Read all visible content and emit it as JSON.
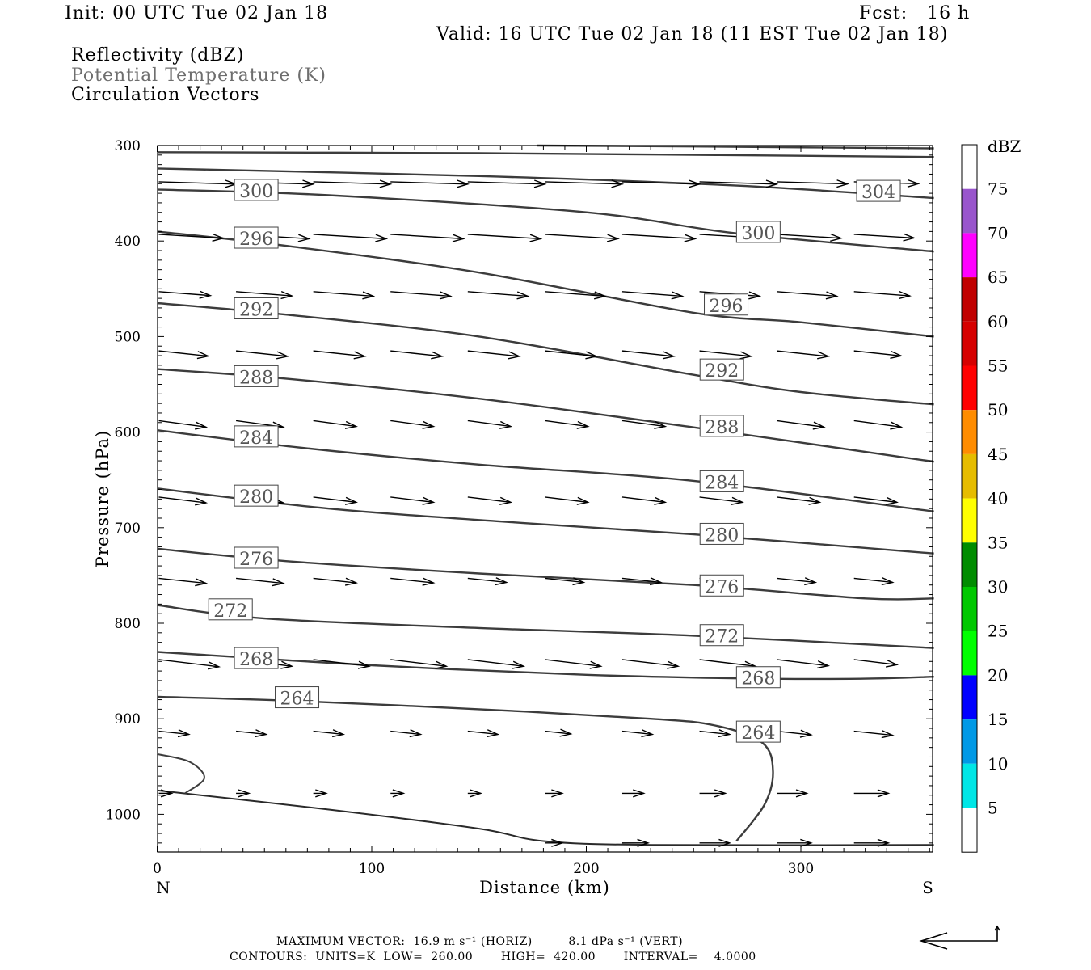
{
  "header": {
    "init": "Init: 00 UTC Tue 02 Jan 18",
    "fcst": "Fcst:   16 h",
    "valid": "Valid: 16 UTC Tue 02 Jan 18 (11 EST Tue 02 Jan 18)"
  },
  "fields": {
    "reflectivity": "Reflectivity (dBZ)",
    "theta": "Potential Temperature (K)",
    "vectors": "Circulation Vectors"
  },
  "footer": {
    "max_vector": "MAXIMUM VECTOR:  16.9 m s⁻¹ (HORIZ)         8.1 dPa s⁻¹ (VERT)",
    "contours": "CONTOURS:  UNITS=K  LOW=  260.00       HIGH=  420.00       INTERVAL=    4.0000"
  },
  "chart_data": {
    "type": "cross-section",
    "xlabel": "Distance (km)",
    "ylabel": "Pressure (hPa)",
    "xlim": [
      0,
      362
    ],
    "ylim": [
      300,
      1040
    ],
    "x_ticks": [
      "0",
      "100",
      "200",
      "300"
    ],
    "x_tick_values": [
      0,
      100,
      200,
      300
    ],
    "y_ticks": [
      "300",
      "400",
      "500",
      "600",
      "700",
      "800",
      "900",
      "1000"
    ],
    "y_tick_values": [
      300,
      400,
      500,
      600,
      700,
      800,
      900,
      1000
    ],
    "end_labels": {
      "left": "N",
      "right": "S"
    },
    "colorbar": {
      "unit": "dBZ",
      "labels": [
        "5",
        "10",
        "15",
        "20",
        "25",
        "30",
        "35",
        "40",
        "45",
        "50",
        "55",
        "60",
        "65",
        "70",
        "75"
      ],
      "colors": [
        "#ffffff",
        "#00e6e6",
        "#0099e6",
        "#0000ff",
        "#00ff00",
        "#00c800",
        "#008c00",
        "#ffff00",
        "#e6bc00",
        "#ff8c00",
        "#ff0000",
        "#d60000",
        "#c00000",
        "#ff00ff",
        "#9955cc",
        "#ffffff"
      ]
    },
    "theta_contours": [
      {
        "level": "264",
        "points": [
          [
            0,
            877
          ],
          [
            60,
            881
          ],
          [
            150,
            890
          ],
          [
            230,
            900
          ],
          [
            260,
            907
          ],
          [
            282,
            925
          ],
          [
            287,
            955
          ],
          [
            283,
            990
          ],
          [
            270,
            1028
          ]
        ],
        "labels": [
          [
            55,
            880
          ],
          [
            270,
            916
          ]
        ]
      },
      {
        "level": "268",
        "points": [
          [
            0,
            830
          ],
          [
            100,
            844
          ],
          [
            200,
            854
          ],
          [
            280,
            858
          ],
          [
            330,
            858
          ],
          [
            362,
            856
          ]
        ],
        "labels": [
          [
            36,
            839
          ],
          [
            270,
            859
          ]
        ]
      },
      {
        "level": "272",
        "points": [
          [
            0,
            781
          ],
          [
            50,
            795
          ],
          [
            150,
            805
          ],
          [
            250,
            813
          ],
          [
            362,
            826
          ]
        ],
        "labels": [
          [
            24,
            788
          ],
          [
            253,
            815
          ]
        ]
      },
      {
        "level": "276",
        "points": [
          [
            0,
            722
          ],
          [
            60,
            735
          ],
          [
            150,
            748
          ],
          [
            250,
            760
          ],
          [
            330,
            774
          ],
          [
            362,
            774
          ]
        ],
        "labels": [
          [
            36,
            734
          ],
          [
            253,
            763
          ]
        ]
      },
      {
        "level": "280",
        "points": [
          [
            0,
            659
          ],
          [
            80,
            680
          ],
          [
            170,
            695
          ],
          [
            250,
            707
          ],
          [
            362,
            727
          ]
        ],
        "labels": [
          [
            36,
            669
          ],
          [
            253,
            709
          ]
        ]
      },
      {
        "level": "284",
        "points": [
          [
            0,
            598
          ],
          [
            70,
            617
          ],
          [
            150,
            634
          ],
          [
            250,
            651
          ],
          [
            362,
            683
          ]
        ],
        "labels": [
          [
            36,
            607
          ],
          [
            253,
            654
          ]
        ]
      },
      {
        "level": "288",
        "points": [
          [
            0,
            534
          ],
          [
            60,
            544
          ],
          [
            150,
            565
          ],
          [
            250,
            595
          ],
          [
            362,
            631
          ]
        ],
        "labels": [
          [
            36,
            544
          ],
          [
            253,
            596
          ]
        ]
      },
      {
        "level": "292",
        "points": [
          [
            0,
            465
          ],
          [
            60,
            477
          ],
          [
            150,
            500
          ],
          [
            250,
            540
          ],
          [
            300,
            558
          ],
          [
            362,
            571
          ]
        ],
        "labels": [
          [
            36,
            473
          ],
          [
            253,
            537
          ]
        ]
      },
      {
        "level": "296",
        "points": [
          [
            0,
            390
          ],
          [
            60,
            405
          ],
          [
            150,
            433
          ],
          [
            250,
            475
          ],
          [
            300,
            485
          ],
          [
            362,
            500
          ]
        ],
        "labels": [
          [
            36,
            399
          ],
          [
            255,
            469
          ]
        ]
      },
      {
        "level": "300",
        "points": [
          [
            0,
            346
          ],
          [
            80,
            352
          ],
          [
            200,
            370
          ],
          [
            270,
            392
          ],
          [
            362,
            411
          ]
        ],
        "labels": [
          [
            36,
            349
          ],
          [
            270,
            393
          ]
        ]
      },
      {
        "level": "304",
        "points": [
          [
            0,
            324
          ],
          [
            150,
            332
          ],
          [
            270,
            342
          ],
          [
            362,
            355
          ]
        ],
        "labels": [
          [
            326,
            350
          ]
        ]
      },
      {
        "level": "",
        "points": [
          [
            0,
            307
          ],
          [
            150,
            308
          ],
          [
            260,
            310
          ],
          [
            362,
            312
          ]
        ],
        "labels": []
      },
      {
        "level": "",
        "points": [
          [
            177,
            300
          ],
          [
            250,
            301
          ],
          [
            362,
            303
          ]
        ],
        "labels": []
      }
    ],
    "vector_rows": [
      {
        "p": 335,
        "start_p": 338,
        "items": [
          [
            0,
            36
          ],
          [
            36,
            36
          ],
          [
            72,
            36
          ],
          [
            108,
            36
          ],
          [
            144,
            36
          ],
          [
            180,
            36
          ],
          [
            216,
            36
          ],
          [
            252,
            36
          ],
          [
            288,
            33
          ],
          [
            324,
            30
          ]
        ],
        "dp": 4
      },
      {
        "p": 390,
        "start_p": 393,
        "items": [
          [
            0,
            30
          ],
          [
            36,
            34
          ],
          [
            72,
            34
          ],
          [
            108,
            34
          ],
          [
            144,
            34
          ],
          [
            180,
            34
          ],
          [
            216,
            34
          ],
          [
            252,
            34
          ],
          [
            288,
            30
          ],
          [
            324,
            28
          ]
        ],
        "dp": 8
      },
      {
        "p": 450,
        "start_p": 453,
        "items": [
          [
            0,
            24
          ],
          [
            36,
            26
          ],
          [
            72,
            28
          ],
          [
            108,
            28
          ],
          [
            144,
            28
          ],
          [
            180,
            28
          ],
          [
            216,
            28
          ],
          [
            252,
            28
          ],
          [
            288,
            28
          ],
          [
            324,
            26
          ]
        ],
        "dp": 10
      },
      {
        "p": 512,
        "start_p": 515,
        "items": [
          [
            0,
            23
          ],
          [
            36,
            24
          ],
          [
            72,
            24
          ],
          [
            108,
            24
          ],
          [
            144,
            24
          ],
          [
            180,
            24
          ],
          [
            216,
            24
          ],
          [
            252,
            24
          ],
          [
            288,
            24
          ],
          [
            324,
            22
          ]
        ],
        "dp": 14
      },
      {
        "p": 585,
        "start_p": 588,
        "items": [
          [
            0,
            22
          ],
          [
            36,
            22
          ],
          [
            72,
            20
          ],
          [
            108,
            20
          ],
          [
            144,
            20
          ],
          [
            180,
            20
          ],
          [
            216,
            20
          ],
          [
            252,
            20
          ],
          [
            288,
            22
          ],
          [
            324,
            22
          ]
        ],
        "dp": 18
      },
      {
        "p": 665,
        "start_p": 668,
        "items": [
          [
            0,
            22
          ],
          [
            36,
            22
          ],
          [
            72,
            20
          ],
          [
            108,
            20
          ],
          [
            144,
            20
          ],
          [
            180,
            20
          ],
          [
            216,
            20
          ],
          [
            252,
            20
          ],
          [
            288,
            20
          ],
          [
            324,
            20
          ]
        ],
        "dp": 16
      },
      {
        "p": 750,
        "start_p": 753,
        "items": [
          [
            0,
            22
          ],
          [
            36,
            22
          ],
          [
            72,
            20
          ],
          [
            108,
            20
          ],
          [
            144,
            18
          ],
          [
            180,
            18
          ],
          [
            216,
            18
          ],
          [
            252,
            18
          ],
          [
            288,
            18
          ],
          [
            324,
            18
          ]
        ],
        "dp": 14
      },
      {
        "p": 835,
        "start_p": 838,
        "items": [
          [
            0,
            28
          ],
          [
            36,
            26
          ],
          [
            72,
            26
          ],
          [
            108,
            26
          ],
          [
            144,
            26
          ],
          [
            180,
            26
          ],
          [
            216,
            26
          ],
          [
            252,
            26
          ],
          [
            288,
            24
          ],
          [
            324,
            20
          ]
        ],
        "dp": 16
      },
      {
        "p": 910,
        "start_p": 913,
        "items": [
          [
            0,
            14
          ],
          [
            36,
            14
          ],
          [
            72,
            14
          ],
          [
            108,
            14
          ],
          [
            144,
            14
          ],
          [
            180,
            12
          ],
          [
            216,
            14
          ],
          [
            252,
            14
          ],
          [
            288,
            16
          ],
          [
            324,
            18
          ]
        ],
        "dp": 14
      },
      {
        "p": 975,
        "start_p": 978,
        "items": [
          [
            0,
            6
          ],
          [
            36,
            6
          ],
          [
            72,
            6
          ],
          [
            108,
            6
          ],
          [
            144,
            6
          ],
          [
            180,
            8
          ],
          [
            216,
            10
          ],
          [
            252,
            12
          ],
          [
            288,
            14
          ],
          [
            324,
            16
          ]
        ],
        "dp": 0
      },
      {
        "p": 1028,
        "start_p": 1030,
        "items": [
          [
            180,
            8
          ],
          [
            216,
            12
          ],
          [
            252,
            14
          ],
          [
            288,
            16
          ],
          [
            324,
            16
          ]
        ],
        "dp": 0
      }
    ],
    "boundary_curve": [
      [
        0,
        975
      ],
      [
        80,
        995
      ],
      [
        150,
        1015
      ],
      [
        180,
        1028
      ],
      [
        230,
        1032
      ],
      [
        362,
        1032
      ]
    ],
    "small_contour": [
      [
        0,
        937
      ],
      [
        15,
        945
      ],
      [
        22,
        962
      ],
      [
        13,
        978
      ]
    ],
    "reference_arrow": {
      "horizontal": "16.9 m s-1",
      "vertical": "8.1 dPa s-1"
    }
  }
}
